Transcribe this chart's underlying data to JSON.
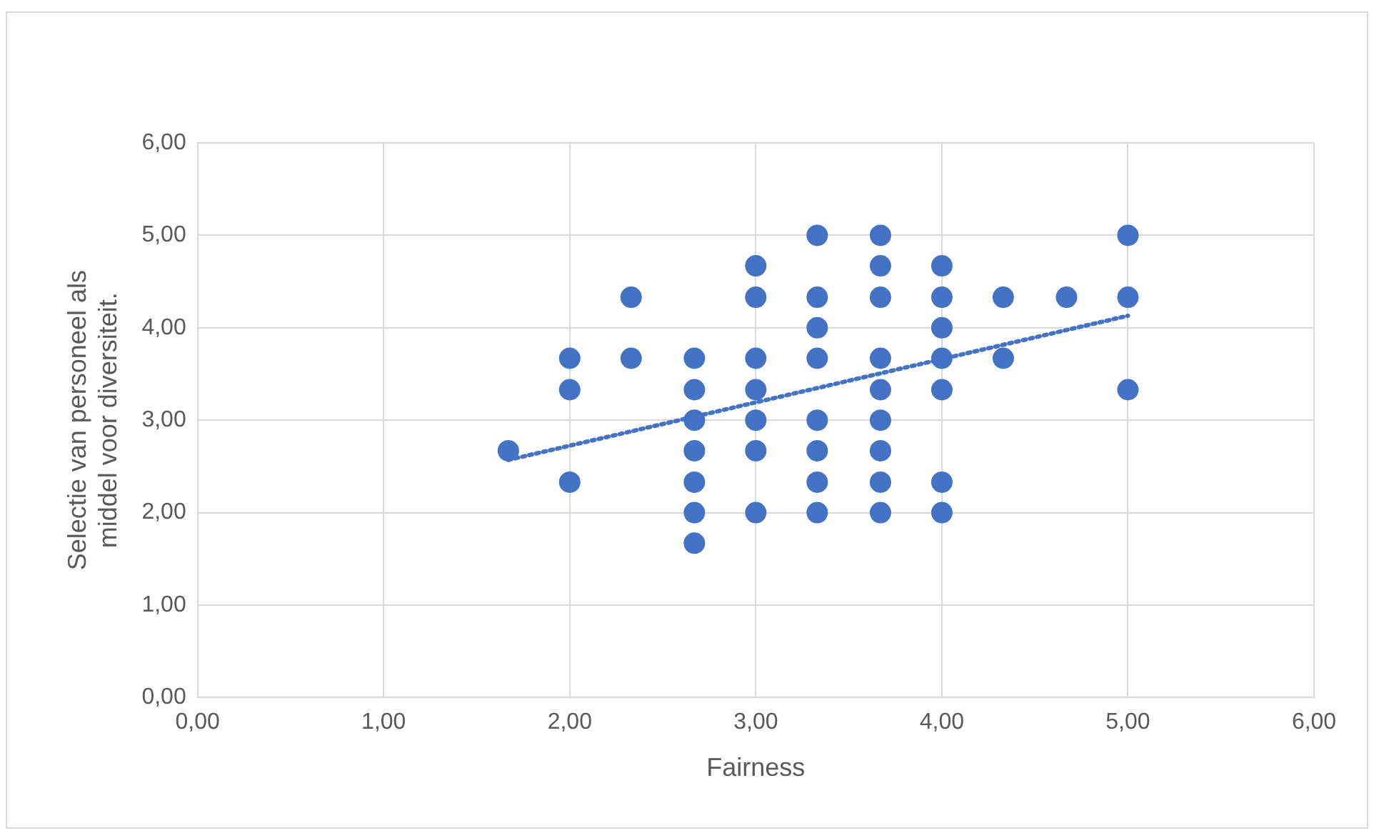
{
  "chart_data": {
    "type": "scatter",
    "xlabel": "Fairness",
    "ylabel": "Selectie van personeel als middel voor diversiteit.",
    "xlim": [
      0,
      6
    ],
    "ylim": [
      0,
      6
    ],
    "xticks": [
      {
        "value": 0,
        "label": "0,00"
      },
      {
        "value": 1,
        "label": "1,00"
      },
      {
        "value": 2,
        "label": "2,00"
      },
      {
        "value": 3,
        "label": "3,00"
      },
      {
        "value": 4,
        "label": "4,00"
      },
      {
        "value": 5,
        "label": "5,00"
      },
      {
        "value": 6,
        "label": "6,00"
      }
    ],
    "yticks": [
      {
        "value": 0,
        "label": "0,00"
      },
      {
        "value": 1,
        "label": "1,00"
      },
      {
        "value": 2,
        "label": "2,00"
      },
      {
        "value": 3,
        "label": "3,00"
      },
      {
        "value": 4,
        "label": "4,00"
      },
      {
        "value": 5,
        "label": "5,00"
      },
      {
        "value": 6,
        "label": "6,00"
      }
    ],
    "grid": true,
    "marker": "circle",
    "series": [
      {
        "color": "#4472c4",
        "x": [
          1.67,
          2,
          2,
          2,
          2.33,
          2.33,
          2.67,
          2.67,
          2.67,
          2.67,
          2.67,
          2.67,
          2.67,
          3,
          3,
          3,
          3,
          3,
          3,
          3,
          3.33,
          3.33,
          3.33,
          3.33,
          3.33,
          3.33,
          3.33,
          3.33,
          3.67,
          3.67,
          3.67,
          3.67,
          3.67,
          3.67,
          3.67,
          3.67,
          3.67,
          4,
          4,
          4,
          4,
          4,
          4,
          4,
          4.33,
          4.33,
          4.67,
          5,
          5,
          5
        ],
        "values": [
          2.67,
          3.67,
          3.33,
          2.33,
          4.33,
          3.67,
          3.67,
          3.33,
          3,
          2.67,
          2.33,
          2,
          1.67,
          4.67,
          4.33,
          3.67,
          3.33,
          3,
          2.67,
          2,
          5,
          4.33,
          4,
          3.67,
          3,
          2.67,
          2.33,
          2,
          5,
          4.67,
          4.33,
          3.67,
          3.33,
          3,
          2.67,
          2.33,
          2,
          4.67,
          4.33,
          4,
          3.67,
          3.33,
          2.33,
          2,
          4.33,
          3.67,
          4.33,
          5,
          4.33,
          3.33
        ]
      },
      {
        "type": "line",
        "color": "#4472c4",
        "line_style": "dotted",
        "marker": "none",
        "x": [
          1.67,
          5
        ],
        "values": [
          2.57,
          4.13
        ]
      }
    ]
  }
}
